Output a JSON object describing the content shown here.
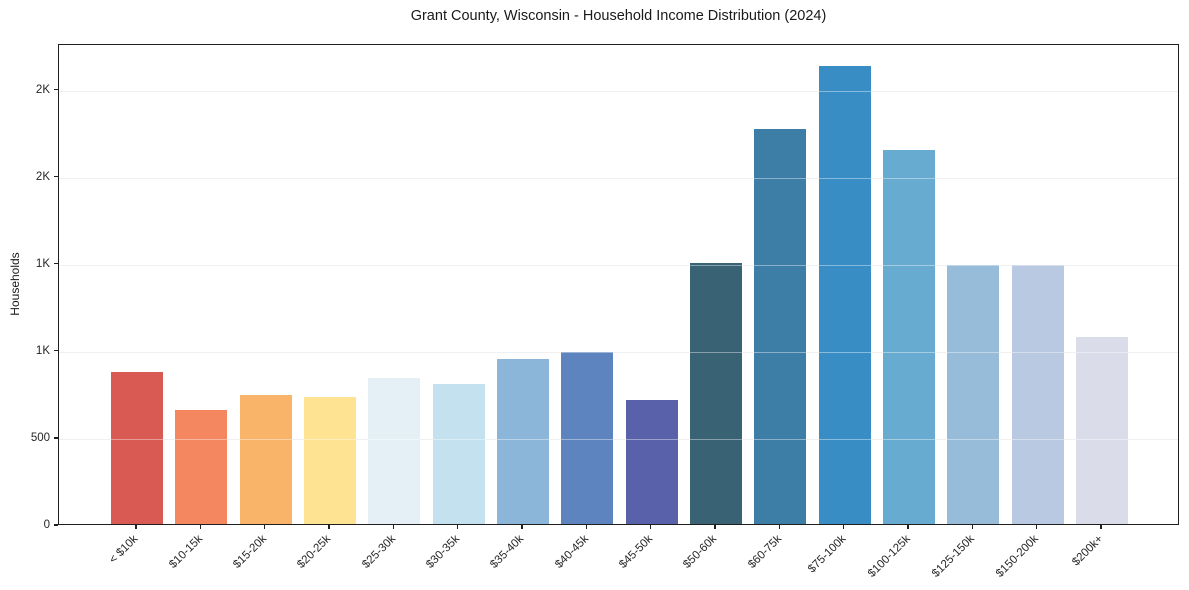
{
  "chart_data": {
    "type": "bar",
    "title": "Grant County, Wisconsin - Household Income Distribution (2024)",
    "xlabel": "",
    "ylabel": "Households",
    "categories": [
      "< $10k",
      "$10-15k",
      "$15-20k",
      "$20-25k",
      "$25-30k",
      "$30-35k",
      "$35-40k",
      "$40-45k",
      "$45-50k",
      "$50-60k",
      "$60-75k",
      "$75-100k",
      "$100-125k",
      "$125-150k",
      "$150-200k",
      "$200k+"
    ],
    "values": [
      875,
      655,
      740,
      730,
      840,
      805,
      945,
      990,
      710,
      1500,
      2270,
      2630,
      2145,
      1490,
      1490,
      1075
    ],
    "bar_colors": [
      "#d85a52",
      "#f48660",
      "#f9b469",
      "#fde392",
      "#e4f0f5",
      "#c3e1ee",
      "#8cb6d9",
      "#5e84bf",
      "#5a61ab",
      "#3a6275",
      "#3d7ea6",
      "#388dc4",
      "#67abd0",
      "#96bcda",
      "#b9c9e1",
      "#dbdce9"
    ],
    "ylim": [
      0,
      2762
    ],
    "yticks": {
      "values": [
        0,
        500,
        1000,
        1500,
        2000,
        2500
      ],
      "labels": [
        "0",
        "500",
        "1K",
        "1K",
        "2K",
        "2K"
      ]
    },
    "grid": "horizontal",
    "legend": "none",
    "background": "#ffffff",
    "axis_color": "#1f1f1f",
    "grid_color": "#e7e7e7"
  }
}
